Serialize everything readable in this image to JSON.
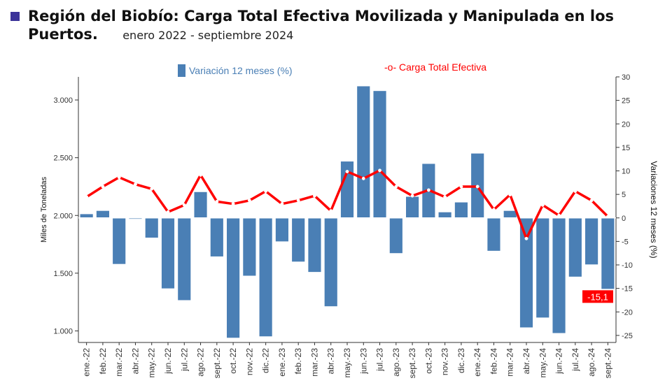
{
  "title": "Región del Biobío: Carga Total Efectiva Movilizada y Manipulada en los Puertos.",
  "subtitle": "enero 2022 - septiembre 2024",
  "colors": {
    "bar": "#4a7fb5",
    "line": "#ff0000",
    "title_square": "#3b3399",
    "label_bg": "#ff0000",
    "label_text": "#ffffff"
  },
  "chart_data": {
    "type": "bar",
    "title": "Región del Biobío: Carga Total Efectiva Movilizada y Manipulada en los Puertos.",
    "subtitle": "enero 2022 - septiembre 2024",
    "ylabel": "Miles de Toneladas",
    "y2label": "Variaciones 12 meses (%)",
    "ylim": [
      900,
      3200
    ],
    "y2lim": [
      -26.5,
      30
    ],
    "yticks": [
      1000,
      1500,
      2000,
      2500,
      3000
    ],
    "ytick_labels": [
      "1.000",
      "1.500",
      "2.000",
      "2.500",
      "3.000"
    ],
    "y2ticks": [
      -25,
      -20,
      -15,
      -10,
      -5,
      0,
      5,
      10,
      15,
      20,
      25,
      30
    ],
    "y2tick_labels": [
      "-25",
      "-20",
      "-15",
      "-10",
      "-5",
      "0",
      "5",
      "10",
      "15",
      "20",
      "25",
      "30"
    ],
    "categories": [
      "ene.-22",
      "feb.-22",
      "mar.-22",
      "abr.-22",
      "may.-22",
      "jun.-22",
      "jul.-22",
      "ago.-22",
      "sept.-22",
      "oct.-22",
      "nov.-22",
      "dic.-22",
      "ene.-23",
      "feb.-23",
      "mar.-23",
      "abr.-23",
      "may.-23",
      "jun.-23",
      "jul.-23",
      "ago.-23",
      "sept.-23",
      "oct.-23",
      "nov.-23",
      "dic.-23",
      "ene.-24",
      "feb.-24",
      "mar.-24",
      "abr.-24",
      "may.-24",
      "jun.-24",
      "jul.-24",
      "ago.-24",
      "sept.-24"
    ],
    "series": [
      {
        "name": "Variación 12 meses (%)",
        "type": "bar",
        "axis": "right",
        "values": [
          0.8,
          1.5,
          -9.8,
          -0.2,
          -4.2,
          -15,
          -17.5,
          5.5,
          -8.2,
          -25.5,
          -12.3,
          -25.2,
          -5,
          -9.3,
          -11.5,
          -18.8,
          12,
          28,
          27,
          -7.5,
          4.5,
          11.5,
          1.2,
          3.3,
          13.7,
          -7,
          1.5,
          -23.3,
          -21.2,
          -24.5,
          -12.5,
          -9.9,
          -15.1
        ]
      },
      {
        "name": "Carga Total Efectiva",
        "type": "line",
        "axis": "left",
        "values": [
          2160,
          2250,
          2330,
          2270,
          2230,
          2030,
          2090,
          2350,
          2120,
          2100,
          2130,
          2210,
          2100,
          2130,
          2170,
          2040,
          2380,
          2320,
          2390,
          2250,
          2170,
          2220,
          2160,
          2250,
          2250,
          2050,
          2180,
          1800,
          2090,
          2000,
          2210,
          2130,
          1990
        ]
      }
    ],
    "legend": [
      "Variación 12 meses (%)",
      "-o- Carga Total Efectiva"
    ],
    "legend_position": "top",
    "annotation": "-15,1"
  }
}
